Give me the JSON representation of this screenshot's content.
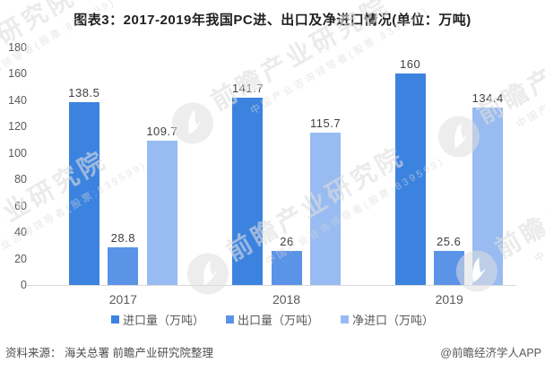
{
  "title": "图表3：2017-2019年我国PC进、出口及净进口情况(单位：万吨)",
  "chart_data": {
    "type": "bar",
    "categories": [
      "2017",
      "2018",
      "2019"
    ],
    "series": [
      {
        "name": "进口量（万吨）",
        "color": "#3c83df",
        "values": [
          138.5,
          141.7,
          160
        ]
      },
      {
        "name": "出口量（万吨）",
        "color": "#5b93e7",
        "values": [
          28.8,
          26,
          25.6
        ]
      },
      {
        "name": "净进口（万吨）",
        "color": "#98bbf1",
        "values": [
          109.7,
          115.7,
          134.4
        ]
      }
    ],
    "title": "图表3：2017-2019年我国PC进、出口及净进口情况(单位：万吨)",
    "xlabel": "",
    "ylabel": "",
    "ylim": [
      0,
      180
    ],
    "ytick_step": 20,
    "grid": false,
    "legend_position": "bottom",
    "value_labels_shown": true,
    "axis_line_color": "#d9d9d9",
    "tick_label_color": "#595959",
    "value_label_color": "#404040"
  },
  "footer": {
    "source": "资料来源： 海关总署 前瞻产业研究院整理",
    "credit": "@前瞻经济学人APP"
  },
  "watermark": {
    "big_text": "前瞻产业研究院",
    "small_text": "中国产业咨询领导者(股票:839599)",
    "logo_icon": "forward-insight-swoosh-icon"
  }
}
